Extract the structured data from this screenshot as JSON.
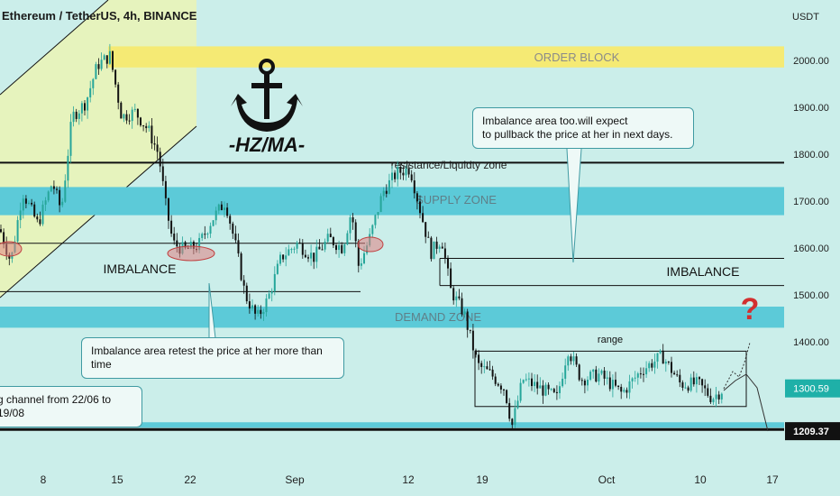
{
  "header": {
    "title": "Ethereum / TetherUS, 4h, BINANCE",
    "currency": "USDT"
  },
  "logo": {
    "icon": "anchor-icon",
    "text": "-HZ/MA-"
  },
  "annotations": {
    "order_block": "ORDER BLOCK",
    "supply_zone": "SUPPLY ZONE",
    "demand_zone": "DEMAND ZONE",
    "resistance": "resistance/Liquidty zone",
    "imbalance_left": "IMBALANCE",
    "imbalance_right": "IMBALANCE",
    "range": "range",
    "question": "?"
  },
  "callouts": {
    "top_right": [
      "Imbalance area too.will expect",
      "to pullback the price at her in next days."
    ],
    "bottom": "Imbalance area retest the price at her more than time",
    "channel": "g channel from 22/06 to 19/08"
  },
  "price_tags": {
    "current": "1300.59",
    "low": "1209.37"
  },
  "colors": {
    "background": "#cbeeea",
    "zone_blue": "#5ccad8",
    "zone_yellow": "#f5ea74",
    "channel_fill": "#e9f3b8",
    "candle_up": "#26a69a",
    "candle_down": "#111111",
    "imbalance_marker": "#e08080",
    "question_mark": "#d32f2f"
  },
  "chart_data": {
    "type": "candlestick",
    "symbol": "ETH/USDT",
    "timeframe": "4h",
    "exchange": "BINANCE",
    "ylim": [
      1150,
      2100
    ],
    "yticks": [
      2000,
      1900,
      1800,
      1700,
      1600,
      1500,
      1400,
      1300
    ],
    "xtick_labels": [
      "8",
      "15",
      "22",
      "Sep",
      "12",
      "19",
      "Oct",
      "10",
      "17"
    ],
    "zones": [
      {
        "label": "ORDER BLOCK",
        "from": 1985,
        "to": 2030
      },
      {
        "label": "SUPPLY ZONE",
        "from": 1670,
        "to": 1730
      },
      {
        "label": "DEMAND ZONE",
        "from": 1430,
        "to": 1475
      }
    ],
    "levels": [
      {
        "label": "resistance/Liquidty zone",
        "price": 1782
      },
      {
        "label": "IMBALANCE",
        "price": 1578
      },
      {
        "label": "",
        "price": 1610
      },
      {
        "label": "",
        "price": 1507
      },
      {
        "label": "",
        "price": 1213
      }
    ],
    "range_box": {
      "label": "range",
      "high": 1380,
      "low": 1262,
      "start": "Sep 19",
      "end": "Oct 14"
    },
    "price_tags": [
      1300.59,
      1209.37
    ],
    "anchors": [
      {
        "x": 0,
        "y": 1640
      },
      {
        "x": 12,
        "y": 1570
      },
      {
        "x": 25,
        "y": 1720
      },
      {
        "x": 42,
        "y": 1650
      },
      {
        "x": 58,
        "y": 1740
      },
      {
        "x": 68,
        "y": 1680
      },
      {
        "x": 80,
        "y": 1880
      },
      {
        "x": 95,
        "y": 1910
      },
      {
        "x": 108,
        "y": 1990
      },
      {
        "x": 122,
        "y": 2010
      },
      {
        "x": 135,
        "y": 1880
      },
      {
        "x": 150,
        "y": 1890
      },
      {
        "x": 165,
        "y": 1850
      },
      {
        "x": 176,
        "y": 1800
      },
      {
        "x": 184,
        "y": 1690
      },
      {
        "x": 192,
        "y": 1610
      },
      {
        "x": 205,
        "y": 1595
      },
      {
        "x": 220,
        "y": 1605
      },
      {
        "x": 235,
        "y": 1660
      },
      {
        "x": 250,
        "y": 1700
      },
      {
        "x": 262,
        "y": 1600
      },
      {
        "x": 272,
        "y": 1500
      },
      {
        "x": 285,
        "y": 1450
      },
      {
        "x": 297,
        "y": 1490
      },
      {
        "x": 312,
        "y": 1580
      },
      {
        "x": 330,
        "y": 1610
      },
      {
        "x": 348,
        "y": 1580
      },
      {
        "x": 365,
        "y": 1620
      },
      {
        "x": 380,
        "y": 1600
      },
      {
        "x": 390,
        "y": 1680
      },
      {
        "x": 398,
        "y": 1560
      },
      {
        "x": 410,
        "y": 1620
      },
      {
        "x": 425,
        "y": 1720
      },
      {
        "x": 440,
        "y": 1760
      },
      {
        "x": 455,
        "y": 1770
      },
      {
        "x": 465,
        "y": 1690
      },
      {
        "x": 478,
        "y": 1590
      },
      {
        "x": 490,
        "y": 1620
      },
      {
        "x": 500,
        "y": 1510
      },
      {
        "x": 515,
        "y": 1460
      },
      {
        "x": 530,
        "y": 1350
      },
      {
        "x": 545,
        "y": 1330
      },
      {
        "x": 560,
        "y": 1300
      },
      {
        "x": 568,
        "y": 1220
      },
      {
        "x": 580,
        "y": 1320
      },
      {
        "x": 600,
        "y": 1300
      },
      {
        "x": 618,
        "y": 1280
      },
      {
        "x": 630,
        "y": 1385
      },
      {
        "x": 645,
        "y": 1320
      },
      {
        "x": 665,
        "y": 1330
      },
      {
        "x": 690,
        "y": 1290
      },
      {
        "x": 712,
        "y": 1340
      },
      {
        "x": 735,
        "y": 1370
      },
      {
        "x": 755,
        "y": 1310
      },
      {
        "x": 775,
        "y": 1310
      },
      {
        "x": 790,
        "y": 1280
      },
      {
        "x": 803,
        "y": 1300
      }
    ]
  }
}
